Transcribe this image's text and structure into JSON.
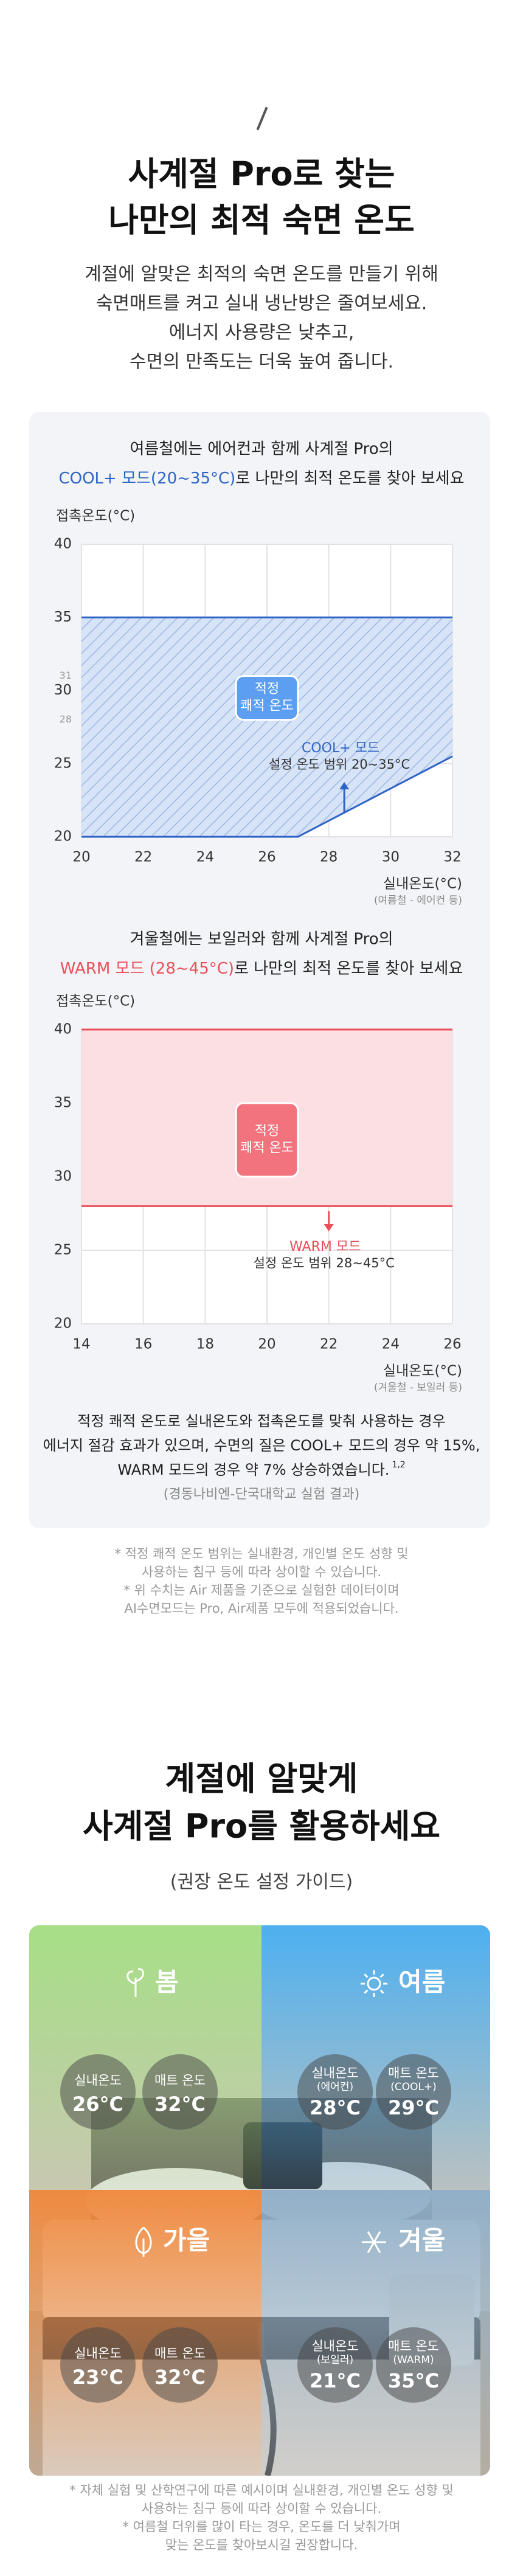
{
  "header": {
    "title": [
      "사계절 Pro로 찾는",
      "나만의 최적 숙면 온도"
    ],
    "body": [
      "계절에 알맞은 최적의 숙면 온도를 만들기 위해",
      "숙면매트를 켜고 실내 냉난방은 줄여보세요.",
      "에너지 사용량은 낮추고,",
      "수면의 만족도는 더욱 높여 줍니다."
    ]
  },
  "chart_data": [
    {
      "type": "area",
      "title": "여름철에는 에어컨과 함께 사계절 Pro의",
      "title_highlight": "COOL+ 모드(20~35°C)",
      "title_rest": "로 나만의 최적 온도를 찾아 보세요",
      "y_label": "접촉온도(°C)",
      "x_label": "실내온도(°C)",
      "x_note": "(여름철 - 에어컨 등)",
      "x": [
        20,
        27,
        32
      ],
      "series": [
        {
          "name": "COOL+ 모드",
          "color": "#2f64c6",
          "upper": [
            35,
            35,
            35
          ],
          "lower": [
            20,
            20,
            25.5
          ]
        }
      ],
      "range_label": "설정 온도 범위 20~35°C",
      "comfort": {
        "label": [
          "적정",
          "쾌적 온도"
        ],
        "x": [
          25,
          27
        ],
        "y": [
          28,
          31
        ],
        "ticks": [
          31,
          28
        ],
        "color": "#5b9ef2"
      },
      "xlim": [
        20,
        32
      ],
      "xticks": [
        20,
        22,
        24,
        26,
        28,
        30,
        32
      ],
      "ylim": [
        20,
        40
      ],
      "yticks": [
        40,
        35,
        30,
        25,
        20
      ],
      "grid": true
    },
    {
      "type": "area",
      "title": "겨울철에는 보일러와 함께 사계절 Pro의",
      "title_highlight": "WARM 모드 (28~45°C)",
      "title_rest": "로 나만의 최적 온도를 찾아 보세요",
      "y_label": "접촉온도(°C)",
      "x_label": "실내온도(°C)",
      "x_note": "(겨울철 - 보일러 등)",
      "x": [
        14,
        26
      ],
      "series": [
        {
          "name": "WARM 모드",
          "color": "#ea4f5a",
          "upper": [
            40,
            40
          ],
          "lower": [
            28,
            28
          ]
        }
      ],
      "range_label": "설정 온도 범위 28~45°C",
      "comfort": {
        "label": [
          "적정",
          "쾌적 온도"
        ],
        "x": [
          19,
          21
        ],
        "y": [
          30,
          35
        ],
        "color": "#f2737d"
      },
      "xlim": [
        14,
        26
      ],
      "xticks": [
        14,
        16,
        18,
        20,
        22,
        24,
        26
      ],
      "ylim": [
        20,
        40
      ],
      "yticks": [
        40,
        35,
        30,
        25,
        20
      ],
      "grid": true
    }
  ],
  "summary": {
    "lines": [
      "적정 쾌적 온도로 실내온도와 접촉온도를 맞춰 사용하는 경우",
      "에너지 절감 효과가 있으며, 수면의 질은 COOL+ 모드의 경우 약 15%,",
      "WARM 모드의 경우 약 7% 상승하였습니다."
    ],
    "sup": "1,2",
    "source": "(경동나비엔-단국대학교 실험 결과)"
  },
  "notes": [
    "* 적정 쾌적 온도 범위는 실내환경, 개인별 온도 성향 및",
    "사용하는 침구 등에 따라 상이할 수 있습니다.",
    "* 위 수치는 Air 제품을 기준으로 실험한 데이터이며",
    "AI수면모드는 Pro, Air제품 모두에 적용되었습니다."
  ],
  "guide": {
    "title": [
      "계절에 알맞게",
      "사계절 Pro를 활용하세요"
    ],
    "subtitle": "(권장 온도 설정 가이드)",
    "seasons": [
      {
        "name": "봄",
        "indoor": {
          "label": [
            "실내온도"
          ],
          "value": "26°C"
        },
        "mat": {
          "label": [
            "매트 온도"
          ],
          "value": "32°C"
        }
      },
      {
        "name": "여름",
        "indoor": {
          "label": [
            "실내온도",
            "(에어컨)"
          ],
          "value": "28°C"
        },
        "mat": {
          "label": [
            "매트 온도",
            "(COOL+)"
          ],
          "value": "29°C"
        }
      },
      {
        "name": "가을",
        "indoor": {
          "label": [
            "실내온도"
          ],
          "value": "23°C"
        },
        "mat": {
          "label": [
            "매트 온도"
          ],
          "value": "32°C"
        }
      },
      {
        "name": "겨울",
        "indoor": {
          "label": [
            "실내온도",
            "(보일러)"
          ],
          "value": "21°C"
        },
        "mat": {
          "label": [
            "매트 온도",
            "(WARM)"
          ],
          "value": "35°C"
        }
      }
    ],
    "notes": [
      "* 자체 실험 및 산학연구에 따른 예시이며 실내환경, 개인별 온도 성향 및",
      "사용하는 침구 등에 따라 상이할 수 있습니다.",
      "* 여름철 더위를 많이 타는 경우, 온도를 더 낮춰가며",
      "맞는 온도를 찾아보시길 권장합니다."
    ]
  }
}
